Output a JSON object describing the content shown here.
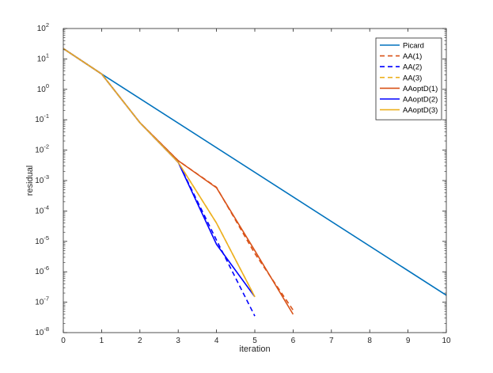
{
  "chart_data": {
    "type": "line",
    "title": "",
    "xlabel": "iteration",
    "ylabel": "residual",
    "xlim": [
      0,
      10
    ],
    "ylim": [
      1e-08,
      100
    ],
    "yscale": "log",
    "grid": false,
    "legend_position": "top-right",
    "x_ticks": [
      "0",
      "1",
      "2",
      "3",
      "4",
      "5",
      "6",
      "7",
      "8",
      "9",
      "10"
    ],
    "y_ticks": [
      {
        "base": "10",
        "exp": "-8"
      },
      {
        "base": "10",
        "exp": "-7"
      },
      {
        "base": "10",
        "exp": "-6"
      },
      {
        "base": "10",
        "exp": "-5"
      },
      {
        "base": "10",
        "exp": "-4"
      },
      {
        "base": "10",
        "exp": "-3"
      },
      {
        "base": "10",
        "exp": "-2"
      },
      {
        "base": "10",
        "exp": "-1"
      },
      {
        "base": "10",
        "exp": "0"
      },
      {
        "base": "10",
        "exp": "1"
      },
      {
        "base": "10",
        "exp": "2"
      }
    ],
    "series": [
      {
        "name": "Picard",
        "color": "#0072BD",
        "dash": "solid",
        "x": [
          0,
          1,
          10
        ],
        "y": [
          22,
          3.2,
          1.7e-07
        ]
      },
      {
        "name": "AA(1)",
        "color": "#D95319",
        "dash": "dashed",
        "x": [
          0,
          1,
          2,
          3,
          4,
          5,
          6
        ],
        "y": [
          22,
          3.2,
          0.08,
          0.0045,
          0.0006,
          4e-06,
          5.5e-08
        ]
      },
      {
        "name": "AA(2)",
        "color": "#0000FF",
        "dash": "dashed",
        "x": [
          0,
          1,
          2,
          3,
          4,
          5
        ],
        "y": [
          22,
          3.2,
          0.08,
          0.004,
          1.1e-05,
          3.5e-08
        ]
      },
      {
        "name": "AA(3)",
        "color": "#EDB120",
        "dash": "dashed",
        "x": [
          0,
          1,
          2,
          3,
          4,
          5
        ],
        "y": [
          22,
          3.2,
          0.08,
          0.004,
          4e-05,
          1.5e-07
        ]
      },
      {
        "name": "AAoptD(1)",
        "color": "#D95319",
        "dash": "solid",
        "x": [
          0,
          1,
          2,
          3,
          4,
          5,
          6
        ],
        "y": [
          22,
          3.2,
          0.08,
          0.0045,
          0.00058,
          5e-06,
          4e-08
        ]
      },
      {
        "name": "AAoptD(2)",
        "color": "#0000FF",
        "dash": "solid",
        "x": [
          0,
          1,
          2,
          3,
          4,
          5
        ],
        "y": [
          22,
          3.2,
          0.08,
          0.004,
          8e-06,
          1.5e-07
        ]
      },
      {
        "name": "AAoptD(3)",
        "color": "#EDB120",
        "dash": "solid",
        "x": [
          0,
          1,
          2,
          3,
          4,
          5
        ],
        "y": [
          22,
          3.2,
          0.08,
          0.004,
          4e-05,
          1.5e-07
        ]
      }
    ]
  }
}
